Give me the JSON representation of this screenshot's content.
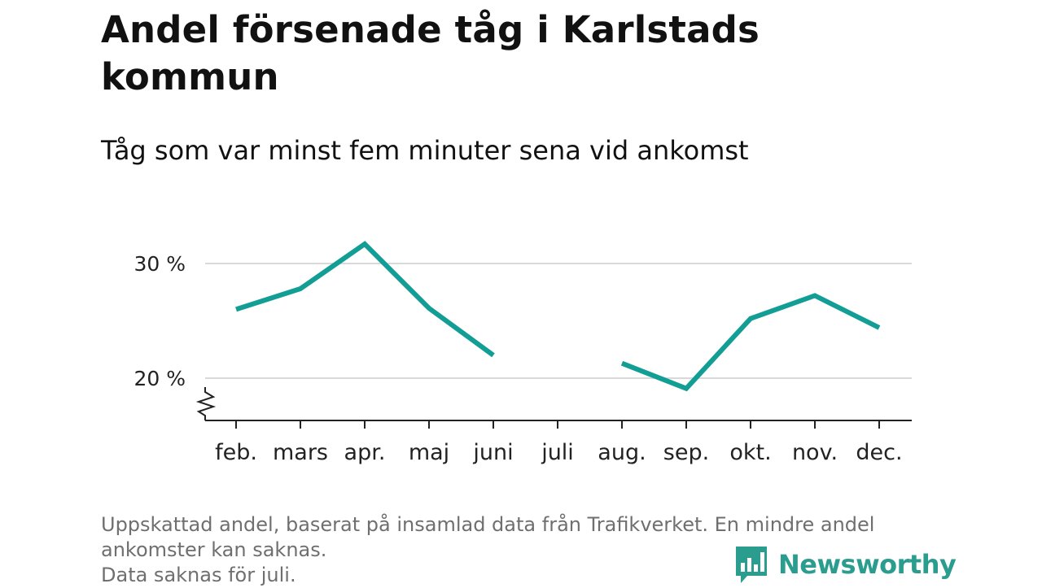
{
  "chart_data": {
    "type": "line",
    "title": "Andel försenade tåg i Karlstads kommun",
    "subtitle": "Tåg som var minst fem minuter sena vid ankomst",
    "categories": [
      "feb.",
      "mars",
      "apr.",
      "maj",
      "juni",
      "juli",
      "aug.",
      "sep.",
      "okt.",
      "nov.",
      "dec."
    ],
    "series": [
      {
        "values": [
          26.0,
          27.8,
          31.7,
          26.1,
          22.0,
          null,
          21.3,
          19.1,
          25.2,
          27.2,
          24.4
        ]
      }
    ],
    "yticks": [
      20,
      30
    ],
    "ytick_labels": [
      "20 %",
      "30 %"
    ],
    "ylim": [
      17.5,
      32
    ],
    "grid": true,
    "axis_break": true,
    "line_color": "#139e95"
  },
  "footnote": {
    "line1": "Uppskattad andel, baserat på insamlad data från Trafikverket. En mindre andel",
    "line2": "ankomster kan saknas.",
    "line3": "Data saknas för juli."
  },
  "logo": {
    "text": "Newsworthy",
    "icon": "bar-chart-speech-bubble-icon",
    "color": "#2a9d8f"
  }
}
